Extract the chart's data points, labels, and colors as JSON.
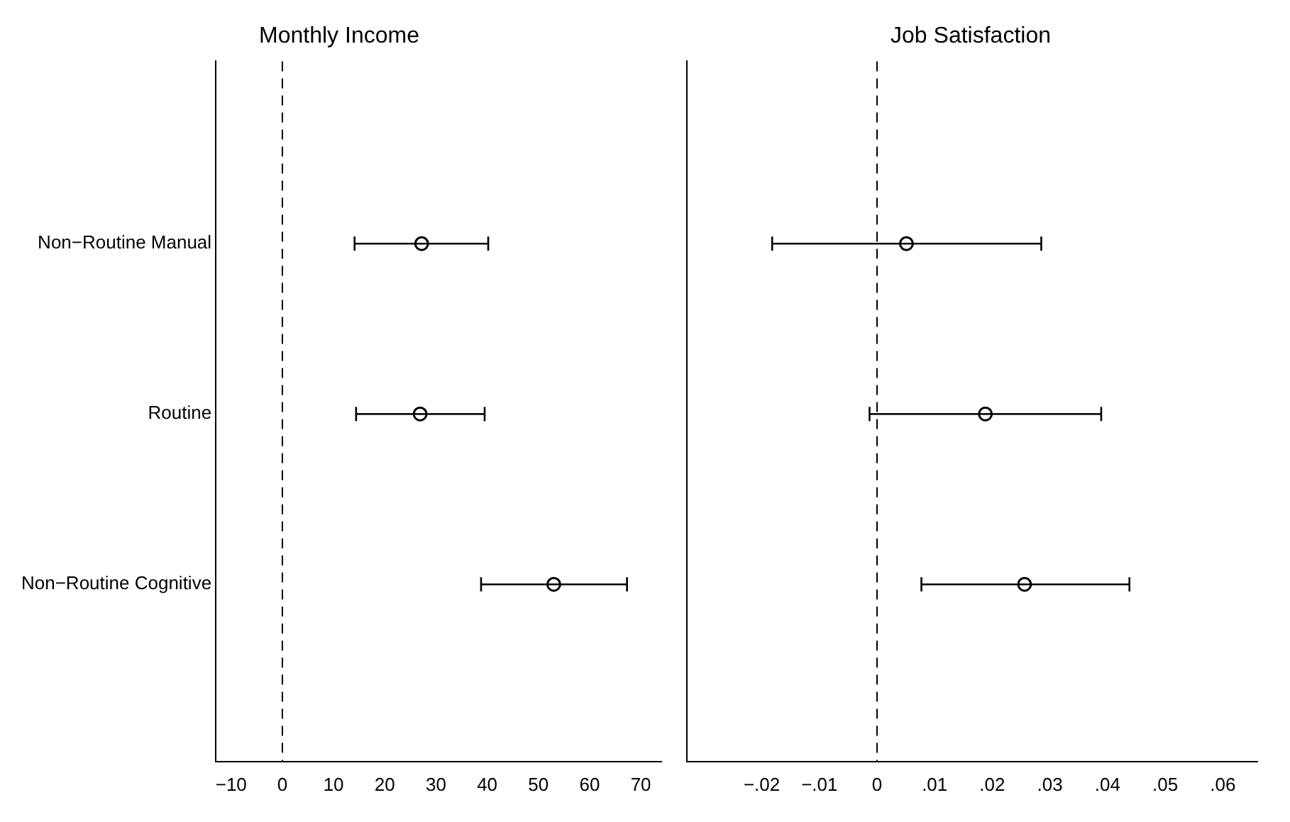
{
  "chart_data": [
    {
      "type": "scatter",
      "title": "Monthly Income",
      "orientation": "horizontal",
      "categories": [
        "Non−Routine Manual",
        "Routine",
        "Non−Routine Cognitive"
      ],
      "values": [
        27.2,
        26.9,
        53
      ],
      "errors": [
        [
          14.1,
          40.2
        ],
        [
          14.4,
          39.5
        ],
        [
          38.8,
          67.3
        ]
      ],
      "color": "#000000",
      "marker": "circle",
      "grid": false,
      "xlim": [
        -13,
        74
      ],
      "xticks": [
        {
          "value": -10,
          "label": "−10"
        },
        0,
        10,
        20,
        30,
        40,
        50,
        60,
        70
      ],
      "ref_lines": [
        {
          "axis": "x",
          "value": 0,
          "line_style": "dashed",
          "color": "#000000"
        }
      ]
    },
    {
      "type": "scatter",
      "title": "Job Satisfaction",
      "orientation": "horizontal",
      "categories": [
        null,
        null,
        null
      ],
      "values": [
        0.0051,
        0.0188,
        0.0256
      ],
      "errors": [
        [
          -0.0182,
          0.0285
        ],
        [
          -0.0013,
          0.0389
        ],
        [
          0.0077,
          0.0438
        ]
      ],
      "color": "#000000",
      "marker": "circle",
      "grid": false,
      "tick_labels": "x",
      "xlim": [
        -0.033,
        0.066
      ],
      "xticks": [
        {
          "value": -0.02,
          "label": "−.02"
        },
        {
          "value": -0.01,
          "label": "−.01"
        },
        0,
        {
          "value": 0.01,
          "label": ".01"
        },
        {
          "value": 0.02,
          "label": ".02"
        },
        {
          "value": 0.03,
          "label": ".03"
        },
        {
          "value": 0.04,
          "label": ".04"
        },
        {
          "value": 0.05,
          "label": ".05"
        },
        {
          "value": 0.06,
          "label": ".06"
        }
      ],
      "ref_lines": [
        {
          "axis": "x",
          "value": 0,
          "line_style": "dashed",
          "color": "#000000"
        }
      ]
    }
  ]
}
